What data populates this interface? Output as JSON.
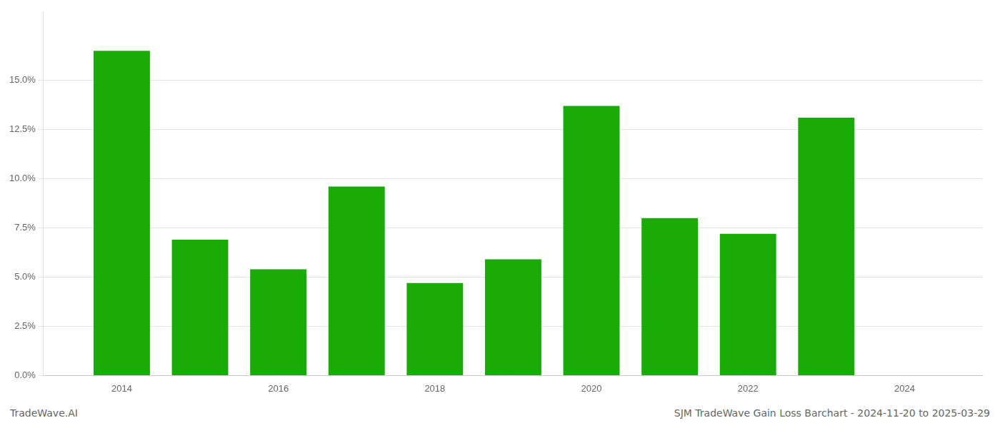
{
  "chart_data": {
    "type": "bar",
    "x": [
      2014,
      2015,
      2016,
      2017,
      2018,
      2019,
      2020,
      2021,
      2022,
      2023
    ],
    "values": [
      0.165,
      0.069,
      0.054,
      0.096,
      0.047,
      0.059,
      0.137,
      0.08,
      0.072,
      0.131
    ],
    "color": "#1aab08",
    "xlim": [
      2013,
      2025
    ],
    "xticks": [
      2014,
      2016,
      2018,
      2020,
      2022,
      2024
    ],
    "ylim": [
      0,
      0.185
    ],
    "yticks": [
      {
        "value": 0.0,
        "label": "0.0%"
      },
      {
        "value": 0.025,
        "label": "2.5%"
      },
      {
        "value": 0.05,
        "label": "5.0%"
      },
      {
        "value": 0.075,
        "label": "7.5%"
      },
      {
        "value": 0.1,
        "label": "10.0%"
      },
      {
        "value": 0.125,
        "label": "12.5%"
      },
      {
        "value": 0.15,
        "label": "15.0%"
      }
    ],
    "grid": true,
    "annotations": [
      "TradeWave.AI",
      "SJM TradeWave Gain Loss Barchart - 2024-11-20 to 2025-03-29"
    ]
  }
}
